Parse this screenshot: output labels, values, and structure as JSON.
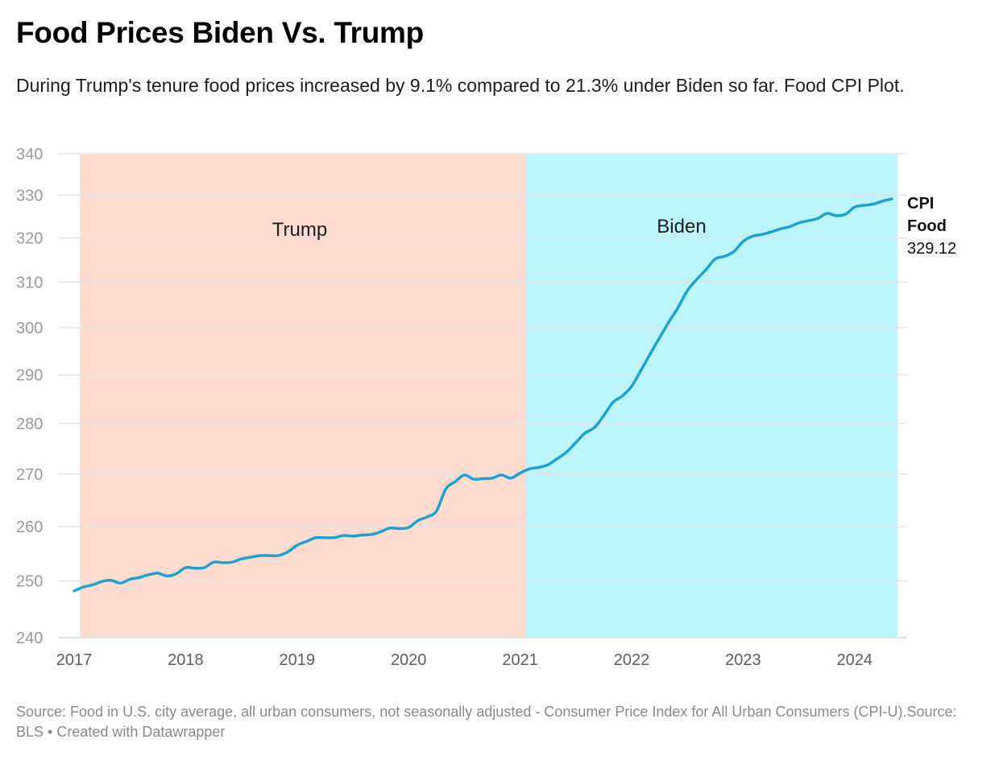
{
  "header": {
    "title": "Food Prices Biden Vs. Trump",
    "subtitle": "During Trump's tenure food prices increased by 9.1% compared to 21.3% under Biden so far. Food CPI Plot."
  },
  "footer": {
    "source_text": "Source: Food in U.S. city average, all urban consumers, not seasonally adjusted - Consumer Price Index for All Urban Consumers (CPI-U).Source: BLS • Created with Datawrapper"
  },
  "colors": {
    "line": "#1ea2cf",
    "trump_band": "#fddbcf",
    "biden_band": "#bdf5fd",
    "grid": "#e4e4e4"
  },
  "chart_data": {
    "type": "line",
    "title": "Food Prices Biden Vs. Trump",
    "xlabel": "",
    "ylabel": "",
    "y_scale": "log",
    "ylim": [
      240,
      340
    ],
    "y_ticks": [
      340,
      330,
      320,
      310,
      300,
      290,
      280,
      270,
      260,
      250,
      240
    ],
    "x_range": [
      "2017-01",
      "2024-05"
    ],
    "x_ticks": [
      "2017",
      "2018",
      "2019",
      "2020",
      "2021",
      "2022",
      "2023",
      "2024"
    ],
    "grid": true,
    "legend": "none",
    "bands": [
      {
        "label": "Trump",
        "start": "2017-01-20",
        "end": "2021-01-20"
      },
      {
        "label": "Biden",
        "start": "2021-01-20",
        "end": "2024-05-20"
      }
    ],
    "end_label": {
      "series": "CPI Food",
      "line1": "CPI",
      "line2": "Food",
      "value": "329.12"
    },
    "series": [
      {
        "name": "CPI Food",
        "x": [
          "2017-01",
          "2017-02",
          "2017-03",
          "2017-04",
          "2017-05",
          "2017-06",
          "2017-07",
          "2017-08",
          "2017-09",
          "2017-10",
          "2017-11",
          "2017-12",
          "2018-01",
          "2018-02",
          "2018-03",
          "2018-04",
          "2018-05",
          "2018-06",
          "2018-07",
          "2018-08",
          "2018-09",
          "2018-10",
          "2018-11",
          "2018-12",
          "2019-01",
          "2019-02",
          "2019-03",
          "2019-04",
          "2019-05",
          "2019-06",
          "2019-07",
          "2019-08",
          "2019-09",
          "2019-10",
          "2019-11",
          "2019-12",
          "2020-01",
          "2020-02",
          "2020-03",
          "2020-04",
          "2020-05",
          "2020-06",
          "2020-07",
          "2020-08",
          "2020-09",
          "2020-10",
          "2020-11",
          "2020-12",
          "2021-01",
          "2021-02",
          "2021-03",
          "2021-04",
          "2021-05",
          "2021-06",
          "2021-07",
          "2021-08",
          "2021-09",
          "2021-10",
          "2021-11",
          "2021-12",
          "2022-01",
          "2022-02",
          "2022-03",
          "2022-04",
          "2022-05",
          "2022-06",
          "2022-07",
          "2022-08",
          "2022-09",
          "2022-10",
          "2022-11",
          "2022-12",
          "2023-01",
          "2023-02",
          "2023-03",
          "2023-04",
          "2023-05",
          "2023-06",
          "2023-07",
          "2023-08",
          "2023-09",
          "2023-10",
          "2023-11",
          "2023-12",
          "2024-01",
          "2024-02",
          "2024-03",
          "2024-04",
          "2024-05"
        ],
        "values": [
          248.2,
          248.9,
          249.3,
          249.9,
          250.1,
          249.6,
          250.3,
          250.6,
          251.1,
          251.4,
          250.9,
          251.3,
          252.4,
          252.3,
          252.4,
          253.4,
          253.3,
          253.4,
          254.0,
          254.3,
          254.6,
          254.6,
          254.6,
          255.3,
          256.5,
          257.2,
          257.9,
          257.9,
          257.9,
          258.3,
          258.2,
          258.4,
          258.5,
          259.0,
          259.7,
          259.6,
          259.8,
          261.1,
          261.8,
          262.9,
          267.1,
          268.5,
          269.8,
          269.0,
          269.1,
          269.2,
          269.8,
          269.2,
          270.2,
          271.0,
          271.3,
          271.8,
          273.0,
          274.3,
          276.2,
          278.1,
          279.2,
          281.6,
          284.3,
          285.6,
          287.6,
          290.9,
          294.4,
          297.8,
          301.2,
          304.4,
          308.1,
          310.6,
          312.8,
          315.2,
          315.8,
          316.9,
          319.2,
          320.4,
          320.8,
          321.4,
          322.1,
          322.6,
          323.5,
          324.0,
          324.5,
          325.7,
          325.2,
          325.5,
          327.2,
          327.6,
          327.9,
          328.6,
          329.12
        ]
      }
    ]
  }
}
